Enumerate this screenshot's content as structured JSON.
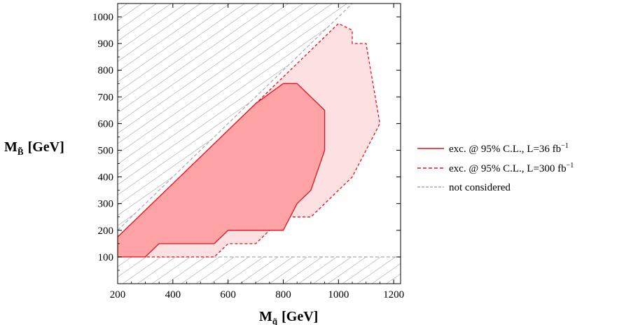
{
  "chart_data": {
    "type": "area",
    "title": "",
    "xlabel": {
      "main": "M",
      "sub": "q̃",
      "unit": "[GeV]"
    },
    "ylabel": {
      "main": "M",
      "sub": "B̃",
      "unit": "[GeV]"
    },
    "xlim": [
      200,
      1225
    ],
    "ylim": [
      0,
      1050
    ],
    "xticks": [
      200,
      400,
      600,
      800,
      1000,
      1200
    ],
    "yticks": [
      100,
      200,
      300,
      400,
      500,
      600,
      700,
      800,
      900,
      1000
    ],
    "grid": false,
    "legend_position": "right",
    "excluded_regions": [
      {
        "name": "not considered",
        "boundary": "y > x",
        "hatched": true
      },
      {
        "name": "not considered",
        "boundary": "y < 100",
        "hatched": true
      }
    ],
    "series": [
      {
        "name": "exc. @ 95% C.L., L=300 fb",
        "name_sup": "−1",
        "style": "dashed",
        "color": "#e8101a",
        "fill": "#fde0e1",
        "points": [
          [
            200,
            100
          ],
          [
            550,
            100
          ],
          [
            600,
            150
          ],
          [
            700,
            150
          ],
          [
            800,
            250
          ],
          [
            900,
            250
          ],
          [
            950,
            300
          ],
          [
            1050,
            400
          ],
          [
            1150,
            600
          ],
          [
            1100,
            900
          ],
          [
            1050,
            900
          ],
          [
            1050,
            950
          ],
          [
            1000,
            975
          ],
          [
            700,
            675
          ],
          [
            200,
            175
          ]
        ]
      },
      {
        "name": "exc. @ 95% C.L., L=36 fb",
        "name_sup": "−1",
        "style": "solid",
        "color": "#e8101a",
        "fill": "#ffa3a6",
        "points": [
          [
            200,
            100
          ],
          [
            300,
            100
          ],
          [
            350,
            150
          ],
          [
            550,
            150
          ],
          [
            600,
            200
          ],
          [
            800,
            200
          ],
          [
            850,
            300
          ],
          [
            900,
            350
          ],
          [
            950,
            500
          ],
          [
            950,
            650
          ],
          [
            850,
            750
          ],
          [
            800,
            750
          ],
          [
            700,
            675
          ],
          [
            200,
            175
          ]
        ]
      }
    ],
    "boundary_line": {
      "name": "not considered",
      "style": "dashed",
      "color": "#999999"
    }
  }
}
